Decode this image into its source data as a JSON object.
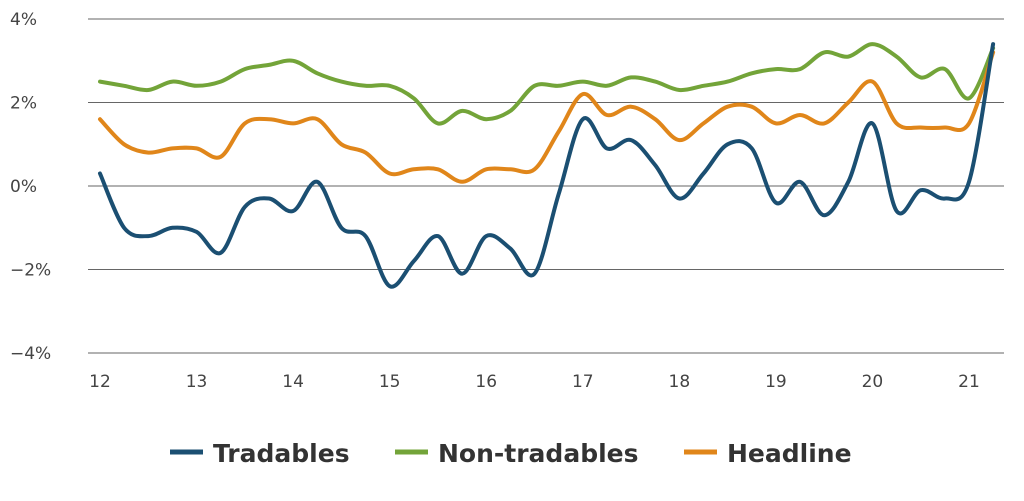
{
  "chart_data": {
    "type": "line",
    "title": "",
    "xlabel": "",
    "ylabel": "",
    "xlim": [
      12,
      21.3
    ],
    "ylim": [
      -4,
      4
    ],
    "x_ticks": [
      12,
      13,
      14,
      15,
      16,
      17,
      18,
      19,
      20,
      21
    ],
    "x_tick_labels": [
      "12",
      "13",
      "14",
      "15",
      "16",
      "17",
      "18",
      "19",
      "20",
      "21"
    ],
    "y_ticks": [
      4,
      2,
      0,
      -2,
      -4
    ],
    "y_tick_labels": [
      "4%",
      "2%",
      "0%",
      "−2%",
      "−4%"
    ],
    "grid": true,
    "legend_position": "bottom",
    "x": [
      12.0,
      12.25,
      12.5,
      12.75,
      13.0,
      13.25,
      13.5,
      13.75,
      14.0,
      14.25,
      14.5,
      14.75,
      15.0,
      15.25,
      15.5,
      15.75,
      16.0,
      16.25,
      16.5,
      16.75,
      17.0,
      17.25,
      17.5,
      17.75,
      18.0,
      18.25,
      18.5,
      18.75,
      19.0,
      19.25,
      19.5,
      19.75,
      20.0,
      20.25,
      20.5,
      20.75,
      21.0,
      21.25
    ],
    "series": [
      {
        "name": "Tradables",
        "color": "#1b4f72",
        "values": [
          0.3,
          -1.0,
          -1.2,
          -1.0,
          -1.1,
          -1.6,
          -0.5,
          -0.3,
          -0.6,
          0.1,
          -1.0,
          -1.2,
          -2.4,
          -1.8,
          -1.2,
          -2.1,
          -1.2,
          -1.5,
          -2.1,
          -0.2,
          1.6,
          0.9,
          1.1,
          0.5,
          -0.3,
          0.3,
          1.0,
          0.9,
          -0.4,
          0.1,
          -0.7,
          0.1,
          1.5,
          -0.6,
          -0.1,
          -0.3,
          0.1,
          3.4
        ]
      },
      {
        "name": "Non-tradables",
        "color": "#73a439",
        "values": [
          2.5,
          2.4,
          2.3,
          2.5,
          2.4,
          2.5,
          2.8,
          2.9,
          3.0,
          2.7,
          2.5,
          2.4,
          2.4,
          2.1,
          1.5,
          1.8,
          1.6,
          1.8,
          2.4,
          2.4,
          2.5,
          2.4,
          2.6,
          2.5,
          2.3,
          2.4,
          2.5,
          2.7,
          2.8,
          2.8,
          3.2,
          3.1,
          3.4,
          3.1,
          2.6,
          2.8,
          2.1,
          3.3
        ]
      },
      {
        "name": "Headline",
        "color": "#e0861a",
        "values": [
          1.6,
          1.0,
          0.8,
          0.9,
          0.9,
          0.7,
          1.5,
          1.6,
          1.5,
          1.6,
          1.0,
          0.8,
          0.3,
          0.4,
          0.4,
          0.1,
          0.4,
          0.4,
          0.4,
          1.3,
          2.2,
          1.7,
          1.9,
          1.6,
          1.1,
          1.5,
          1.9,
          1.9,
          1.5,
          1.7,
          1.5,
          2.0,
          2.5,
          1.5,
          1.4,
          1.4,
          1.5,
          3.2
        ]
      }
    ]
  }
}
